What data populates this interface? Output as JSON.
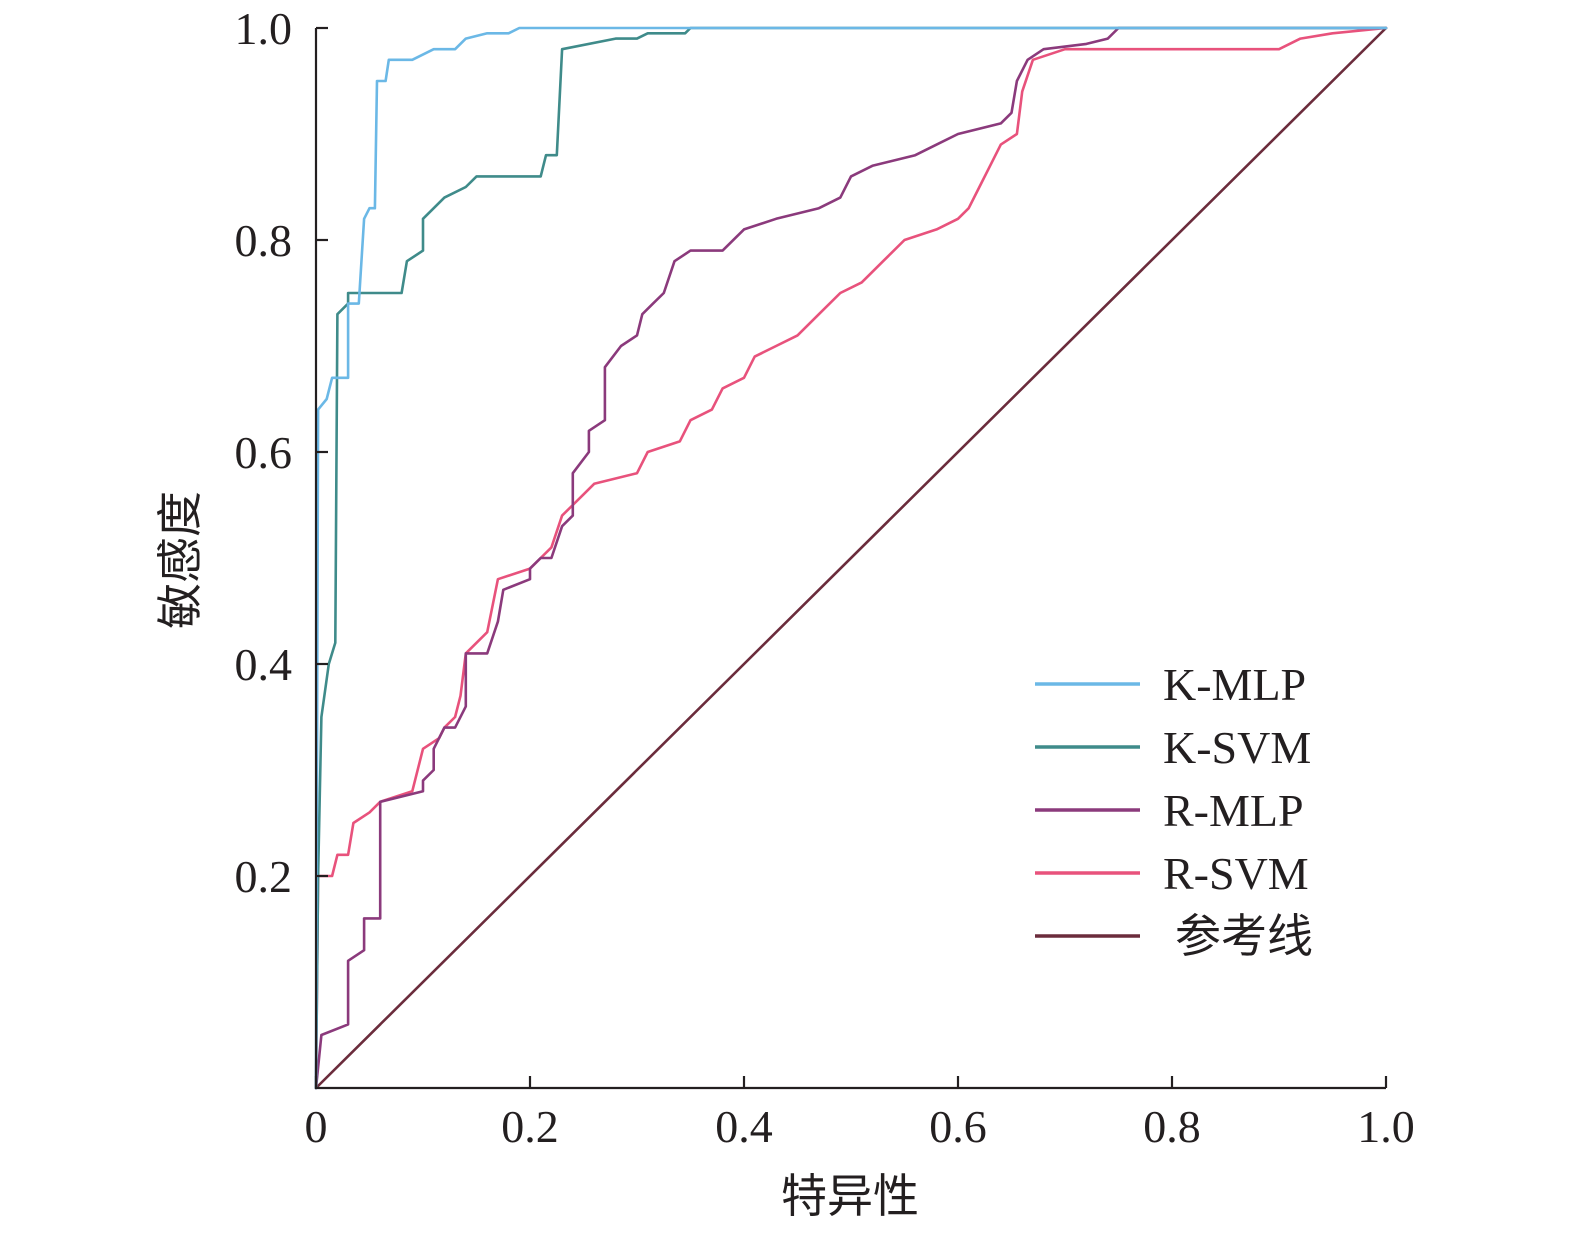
{
  "chart_data": {
    "type": "line",
    "title": "",
    "xlabel": "特异性",
    "ylabel": "敏感度",
    "xlim": [
      0,
      1
    ],
    "ylim": [
      0,
      1
    ],
    "x_ticks": [
      {
        "value": 0,
        "label": "0"
      },
      {
        "value": 0.2,
        "label": "0.2"
      },
      {
        "value": 0.4,
        "label": "0.4"
      },
      {
        "value": 0.6,
        "label": "0.6"
      },
      {
        "value": 0.8,
        "label": "0.8"
      },
      {
        "value": 1.0,
        "label": "1.0"
      }
    ],
    "y_ticks": [
      {
        "value": 0.2,
        "label": "0.2"
      },
      {
        "value": 0.4,
        "label": "0.4"
      },
      {
        "value": 0.6,
        "label": "0.6"
      },
      {
        "value": 0.8,
        "label": "0.8"
      },
      {
        "value": 1.0,
        "label": "1.0"
      }
    ],
    "grid": false,
    "legend_position": "bottom-right",
    "series": [
      {
        "name": "K-MLP",
        "color": "#6bb8e6",
        "points": [
          [
            0,
            0
          ],
          [
            0.002,
            0.64
          ],
          [
            0.01,
            0.65
          ],
          [
            0.015,
            0.67
          ],
          [
            0.03,
            0.67
          ],
          [
            0.03,
            0.74
          ],
          [
            0.04,
            0.74
          ],
          [
            0.045,
            0.82
          ],
          [
            0.05,
            0.83
          ],
          [
            0.055,
            0.83
          ],
          [
            0.057,
            0.95
          ],
          [
            0.065,
            0.95
          ],
          [
            0.068,
            0.97
          ],
          [
            0.09,
            0.97
          ],
          [
            0.11,
            0.98
          ],
          [
            0.13,
            0.98
          ],
          [
            0.14,
            0.99
          ],
          [
            0.16,
            0.995
          ],
          [
            0.18,
            0.995
          ],
          [
            0.19,
            1.0
          ],
          [
            1.0,
            1.0
          ]
        ]
      },
      {
        "name": "K-SVM",
        "color": "#3f8b8a",
        "points": [
          [
            0,
            0
          ],
          [
            0.002,
            0.2
          ],
          [
            0.005,
            0.35
          ],
          [
            0.012,
            0.4
          ],
          [
            0.018,
            0.42
          ],
          [
            0.02,
            0.73
          ],
          [
            0.03,
            0.74
          ],
          [
            0.03,
            0.75
          ],
          [
            0.08,
            0.75
          ],
          [
            0.085,
            0.78
          ],
          [
            0.1,
            0.79
          ],
          [
            0.1,
            0.82
          ],
          [
            0.11,
            0.83
          ],
          [
            0.12,
            0.84
          ],
          [
            0.14,
            0.85
          ],
          [
            0.15,
            0.86
          ],
          [
            0.21,
            0.86
          ],
          [
            0.215,
            0.88
          ],
          [
            0.225,
            0.88
          ],
          [
            0.23,
            0.98
          ],
          [
            0.28,
            0.99
          ],
          [
            0.3,
            0.99
          ],
          [
            0.31,
            0.995
          ],
          [
            0.345,
            0.995
          ],
          [
            0.35,
            1.0
          ],
          [
            1.0,
            1.0
          ]
        ]
      },
      {
        "name": "R-MLP",
        "color": "#8b3a7c",
        "points": [
          [
            0,
            0
          ],
          [
            0.005,
            0.05
          ],
          [
            0.03,
            0.06
          ],
          [
            0.03,
            0.12
          ],
          [
            0.045,
            0.13
          ],
          [
            0.045,
            0.16
          ],
          [
            0.06,
            0.16
          ],
          [
            0.06,
            0.27
          ],
          [
            0.1,
            0.28
          ],
          [
            0.1,
            0.29
          ],
          [
            0.11,
            0.3
          ],
          [
            0.11,
            0.32
          ],
          [
            0.12,
            0.34
          ],
          [
            0.13,
            0.34
          ],
          [
            0.14,
            0.36
          ],
          [
            0.14,
            0.41
          ],
          [
            0.16,
            0.41
          ],
          [
            0.17,
            0.44
          ],
          [
            0.175,
            0.47
          ],
          [
            0.2,
            0.48
          ],
          [
            0.2,
            0.49
          ],
          [
            0.21,
            0.5
          ],
          [
            0.22,
            0.5
          ],
          [
            0.23,
            0.53
          ],
          [
            0.24,
            0.54
          ],
          [
            0.24,
            0.58
          ],
          [
            0.255,
            0.6
          ],
          [
            0.255,
            0.62
          ],
          [
            0.27,
            0.63
          ],
          [
            0.27,
            0.68
          ],
          [
            0.285,
            0.7
          ],
          [
            0.3,
            0.71
          ],
          [
            0.305,
            0.73
          ],
          [
            0.315,
            0.74
          ],
          [
            0.325,
            0.75
          ],
          [
            0.335,
            0.78
          ],
          [
            0.35,
            0.79
          ],
          [
            0.38,
            0.79
          ],
          [
            0.4,
            0.81
          ],
          [
            0.43,
            0.82
          ],
          [
            0.47,
            0.83
          ],
          [
            0.49,
            0.84
          ],
          [
            0.5,
            0.86
          ],
          [
            0.52,
            0.87
          ],
          [
            0.56,
            0.88
          ],
          [
            0.58,
            0.89
          ],
          [
            0.6,
            0.9
          ],
          [
            0.64,
            0.91
          ],
          [
            0.65,
            0.92
          ],
          [
            0.655,
            0.95
          ],
          [
            0.665,
            0.97
          ],
          [
            0.68,
            0.98
          ],
          [
            0.72,
            0.985
          ],
          [
            0.74,
            0.99
          ],
          [
            0.75,
            1.0
          ],
          [
            1.0,
            1.0
          ]
        ]
      },
      {
        "name": "R-SVM",
        "color": "#e8527c",
        "points": [
          [
            0,
            0
          ],
          [
            0.002,
            0.2
          ],
          [
            0.015,
            0.2
          ],
          [
            0.02,
            0.22
          ],
          [
            0.03,
            0.22
          ],
          [
            0.035,
            0.25
          ],
          [
            0.05,
            0.26
          ],
          [
            0.06,
            0.27
          ],
          [
            0.09,
            0.28
          ],
          [
            0.1,
            0.32
          ],
          [
            0.115,
            0.33
          ],
          [
            0.12,
            0.34
          ],
          [
            0.13,
            0.35
          ],
          [
            0.135,
            0.37
          ],
          [
            0.14,
            0.41
          ],
          [
            0.15,
            0.42
          ],
          [
            0.16,
            0.43
          ],
          [
            0.17,
            0.48
          ],
          [
            0.2,
            0.49
          ],
          [
            0.21,
            0.5
          ],
          [
            0.22,
            0.51
          ],
          [
            0.23,
            0.54
          ],
          [
            0.24,
            0.55
          ],
          [
            0.25,
            0.56
          ],
          [
            0.26,
            0.57
          ],
          [
            0.3,
            0.58
          ],
          [
            0.31,
            0.6
          ],
          [
            0.34,
            0.61
          ],
          [
            0.35,
            0.63
          ],
          [
            0.37,
            0.64
          ],
          [
            0.38,
            0.66
          ],
          [
            0.4,
            0.67
          ],
          [
            0.41,
            0.69
          ],
          [
            0.43,
            0.7
          ],
          [
            0.45,
            0.71
          ],
          [
            0.47,
            0.73
          ],
          [
            0.49,
            0.75
          ],
          [
            0.51,
            0.76
          ],
          [
            0.53,
            0.78
          ],
          [
            0.55,
            0.8
          ],
          [
            0.58,
            0.81
          ],
          [
            0.6,
            0.82
          ],
          [
            0.61,
            0.83
          ],
          [
            0.62,
            0.85
          ],
          [
            0.63,
            0.87
          ],
          [
            0.64,
            0.89
          ],
          [
            0.655,
            0.9
          ],
          [
            0.66,
            0.94
          ],
          [
            0.67,
            0.97
          ],
          [
            0.7,
            0.98
          ],
          [
            0.9,
            0.98
          ],
          [
            0.92,
            0.99
          ],
          [
            0.95,
            0.995
          ],
          [
            1.0,
            1.0
          ]
        ]
      },
      {
        "name": "参考线",
        "color": "#6b2c3c",
        "points": [
          [
            0,
            0
          ],
          [
            1.0,
            1.0
          ]
        ]
      }
    ]
  }
}
